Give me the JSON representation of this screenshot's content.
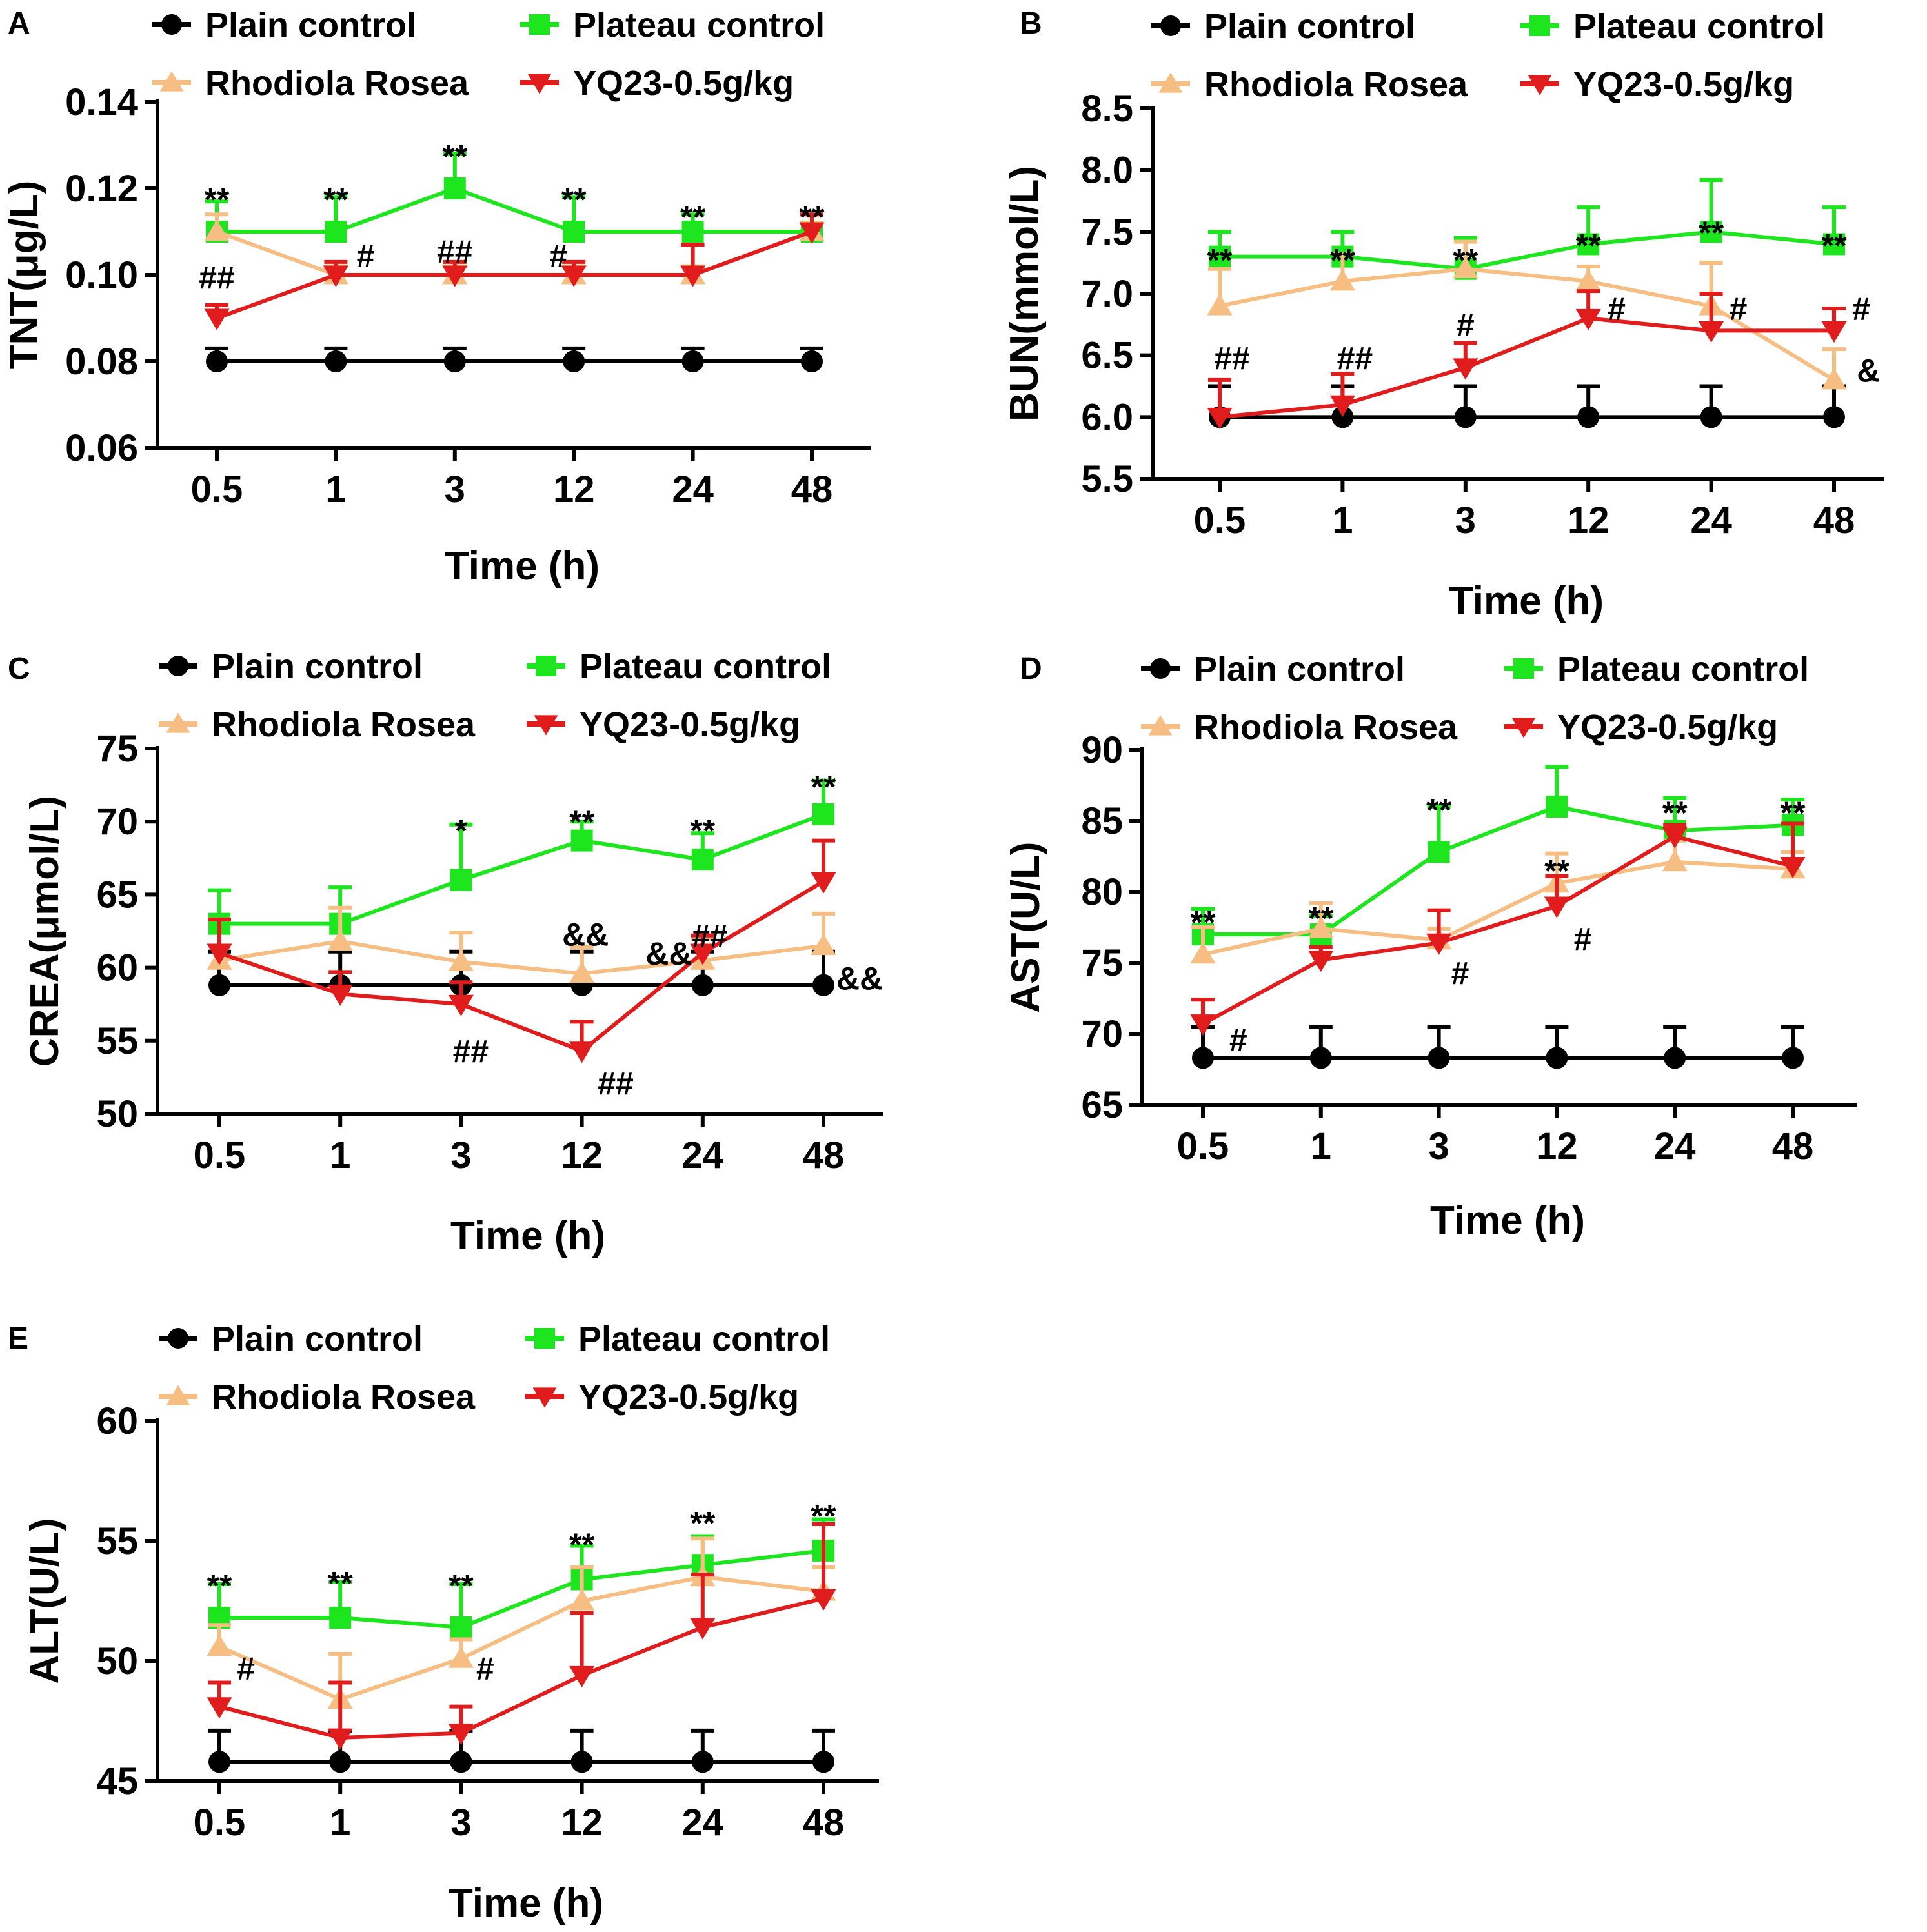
{
  "chart_data": [
    {
      "panel": "A",
      "type": "line",
      "ylabel": "TNT(μg/L)",
      "xlabel": "Time (h)",
      "categories": [
        "0.5",
        "1",
        "3",
        "12",
        "24",
        "48"
      ],
      "ylim": [
        0.06,
        0.14
      ],
      "yticks": [
        "0.06",
        "0.08",
        "0.10",
        "0.12",
        "0.14"
      ],
      "legend": [
        "Plain control",
        "Plateau control",
        "Rhodiola Rosea",
        "YQ23-0.5g/kg"
      ],
      "series": [
        {
          "name": "Plain control",
          "values": [
            0.08,
            0.08,
            0.08,
            0.08,
            0.08,
            0.08
          ],
          "err": [
            0.003,
            0.003,
            0.003,
            0.003,
            0.003,
            0.003
          ]
        },
        {
          "name": "Plateau control",
          "values": [
            0.11,
            0.11,
            0.12,
            0.11,
            0.11,
            0.11
          ],
          "err": [
            0.007,
            0.008,
            0.008,
            0.008,
            0.004,
            0.004
          ]
        },
        {
          "name": "Rhodiola Rosea",
          "values": [
            0.11,
            0.1,
            0.1,
            0.1,
            0.1,
            0.11
          ],
          "err": [
            0.004,
            0.002,
            0.002,
            0.002,
            0.002,
            0.002
          ]
        },
        {
          "name": "YQ23-0.5g/kg",
          "values": [
            0.09,
            0.1,
            0.1,
            0.1,
            0.1,
            0.11
          ],
          "err": [
            0.003,
            0.003,
            0.003,
            0.003,
            0.007,
            0.004
          ]
        }
      ],
      "annotations": [
        {
          "text": "**",
          "x": 0,
          "y": 0.1205
        },
        {
          "text": "**",
          "x": 1,
          "y": 0.1205
        },
        {
          "text": "**",
          "x": 2,
          "y": 0.1305
        },
        {
          "text": "**",
          "x": 3,
          "y": 0.1205
        },
        {
          "text": "**",
          "x": 4,
          "y": 0.1165
        },
        {
          "text": "**",
          "x": 5,
          "y": 0.1165
        },
        {
          "text": "##",
          "x": 0,
          "y": 0.0995
        },
        {
          "text": "#",
          "x": 1.25,
          "y": 0.1045
        },
        {
          "text": "##",
          "x": 2,
          "y": 0.1055
        },
        {
          "text": "#",
          "x": 2.87,
          "y": 0.1045
        }
      ]
    },
    {
      "panel": "B",
      "type": "line",
      "ylabel": "BUN(mmol/L)",
      "xlabel": "Time (h)",
      "categories": [
        "0.5",
        "1",
        "3",
        "12",
        "24",
        "48"
      ],
      "ylim": [
        5.5,
        8.5
      ],
      "yticks": [
        "5.5",
        "6.0",
        "6.5",
        "7.0",
        "7.5",
        "8.0",
        "8.5"
      ],
      "legend": [
        "Plain control",
        "Plateau control",
        "Rhodiola Rosea",
        "YQ23-0.5g/kg"
      ],
      "series": [
        {
          "name": "Plain control",
          "values": [
            6.0,
            6.0,
            6.0,
            6.0,
            6.0,
            6.0
          ],
          "err": [
            0.25,
            0.25,
            0.25,
            0.25,
            0.25,
            0.25
          ]
        },
        {
          "name": "Plateau control",
          "values": [
            7.3,
            7.3,
            7.2,
            7.4,
            7.5,
            7.4
          ],
          "err": [
            0.2,
            0.2,
            0.25,
            0.3,
            0.42,
            0.3
          ]
        },
        {
          "name": "Rhodiola Rosea",
          "values": [
            6.9,
            7.1,
            7.2,
            7.1,
            6.9,
            6.3
          ],
          "err": [
            0.3,
            0.22,
            0.22,
            0.12,
            0.35,
            0.25
          ]
        },
        {
          "name": "YQ23-0.5g/kg",
          "values": [
            6.0,
            6.1,
            6.4,
            6.8,
            6.7,
            6.7
          ],
          "err": [
            0.3,
            0.25,
            0.2,
            0.22,
            0.3,
            0.18
          ]
        }
      ],
      "annotations": [
        {
          "text": "**",
          "x": 0,
          "y": 7.38
        },
        {
          "text": "**",
          "x": 1,
          "y": 7.38
        },
        {
          "text": "**",
          "x": 2,
          "y": 7.38
        },
        {
          "text": "**",
          "x": 3,
          "y": 7.5
        },
        {
          "text": "**",
          "x": 4,
          "y": 7.6
        },
        {
          "text": "**",
          "x": 5,
          "y": 7.5
        },
        {
          "text": "##",
          "x": 0.1,
          "y": 6.48
        },
        {
          "text": "##",
          "x": 1.1,
          "y": 6.48
        },
        {
          "text": "#",
          "x": 2,
          "y": 6.75
        },
        {
          "text": "#",
          "x": 3.23,
          "y": 6.88
        },
        {
          "text": "#",
          "x": 4.22,
          "y": 6.88
        },
        {
          "text": "#",
          "x": 5.22,
          "y": 6.88
        },
        {
          "text": "&",
          "x": 5.28,
          "y": 6.38
        }
      ]
    },
    {
      "panel": "C",
      "type": "line",
      "ylabel": "CREA(μmol/L)",
      "xlabel": "Time (h)",
      "categories": [
        "0.5",
        "1",
        "3",
        "12",
        "24",
        "48"
      ],
      "ylim": [
        50,
        75
      ],
      "yticks": [
        "50",
        "55",
        "60",
        "65",
        "70",
        "75"
      ],
      "legend": [
        "Plain control",
        "Plateau control",
        "Rhodiola Rosea",
        "YQ23-0.5g/kg"
      ],
      "series": [
        {
          "name": "Plain control",
          "values": [
            58.8,
            58.8,
            58.8,
            58.8,
            58.8,
            58.8
          ],
          "err": [
            2.3,
            2.3,
            2.3,
            2.3,
            2.3,
            2.3
          ]
        },
        {
          "name": "Plateau control",
          "values": [
            63.0,
            63.0,
            66.0,
            68.7,
            67.4,
            70.5
          ],
          "err": [
            2.3,
            2.5,
            3.8,
            1.3,
            1.8,
            2.3
          ]
        },
        {
          "name": "Rhodiola Rosea",
          "values": [
            60.5,
            61.8,
            60.4,
            59.6,
            60.5,
            61.5
          ],
          "err": [
            2.8,
            2.3,
            2.0,
            1.8,
            1.5,
            2.2
          ]
        },
        {
          "name": "YQ23-0.5g/kg",
          "values": [
            61.0,
            58.2,
            57.5,
            54.3,
            61.0,
            65.9
          ],
          "err": [
            2.3,
            1.5,
            1.5,
            2.0,
            1.2,
            2.8
          ]
        }
      ],
      "annotations": [
        {
          "text": "*",
          "x": 2,
          "y": 70.3
        },
        {
          "text": "**",
          "x": 3,
          "y": 70.9
        },
        {
          "text": "**",
          "x": 4,
          "y": 70.3
        },
        {
          "text": "**",
          "x": 5,
          "y": 73.3
        },
        {
          "text": "&&",
          "x": 3.03,
          "y": 62.3
        },
        {
          "text": "&&",
          "x": 3.72,
          "y": 61.0
        },
        {
          "text": "##",
          "x": 4.06,
          "y": 62.2
        },
        {
          "text": "&&",
          "x": 5.3,
          "y": 59.3
        },
        {
          "text": "##",
          "x": 2.08,
          "y": 54.3
        },
        {
          "text": "##",
          "x": 3.28,
          "y": 52.1
        }
      ]
    },
    {
      "panel": "D",
      "type": "line",
      "ylabel": "AST(U/L)",
      "xlabel": "Time (h)",
      "categories": [
        "0.5",
        "1",
        "3",
        "12",
        "24",
        "48"
      ],
      "ylim": [
        65,
        90
      ],
      "yticks": [
        "65",
        "70",
        "75",
        "80",
        "85",
        "90"
      ],
      "legend": [
        "Plain control",
        "Plateau control",
        "Rhodiola Rosea",
        "YQ23-0.5g/kg"
      ],
      "series": [
        {
          "name": "Plain control",
          "values": [
            68.3,
            68.3,
            68.3,
            68.3,
            68.3,
            68.3
          ],
          "err": [
            2.2,
            2.2,
            2.2,
            2.2,
            2.2,
            2.2
          ]
        },
        {
          "name": "Plateau control",
          "values": [
            77.0,
            77.0,
            82.8,
            86.0,
            84.3,
            84.7
          ],
          "err": [
            1.8,
            1.3,
            3.2,
            2.8,
            2.3,
            1.8
          ]
        },
        {
          "name": "Rhodiola Rosea",
          "values": [
            75.6,
            77.4,
            76.6,
            80.6,
            82.1,
            81.6
          ],
          "err": [
            1.9,
            1.8,
            0.8,
            2.1,
            1.5,
            1.2
          ]
        },
        {
          "name": "YQ23-0.5g/kg",
          "values": [
            70.7,
            75.2,
            76.4,
            79.0,
            83.9,
            81.8
          ],
          "err": [
            1.7,
            0.9,
            2.3,
            2.1,
            0.8,
            3.0
          ]
        }
      ],
      "annotations": [
        {
          "text": "**",
          "x": 0,
          "y": 78.8
        },
        {
          "text": "**",
          "x": 1,
          "y": 79.1
        },
        {
          "text": "**",
          "x": 2,
          "y": 86.7
        },
        {
          "text": "**",
          "x": 3,
          "y": 82.4
        },
        {
          "text": "**",
          "x": 4,
          "y": 86.5
        },
        {
          "text": "**",
          "x": 5,
          "y": 86.5
        },
        {
          "text": "#",
          "x": 0.3,
          "y": 69.6
        },
        {
          "text": "#",
          "x": 2.18,
          "y": 74.3
        },
        {
          "text": "#",
          "x": 3.22,
          "y": 76.7
        }
      ]
    },
    {
      "panel": "E",
      "type": "line",
      "ylabel": "ALT(U/L)",
      "xlabel": "Time (h)",
      "categories": [
        "0.5",
        "1",
        "3",
        "12",
        "24",
        "48"
      ],
      "ylim": [
        45,
        60
      ],
      "yticks": [
        "45",
        "50",
        "55",
        "60"
      ],
      "legend": [
        "Plain control",
        "Plateau control",
        "Rhodiola Rosea",
        "YQ23-0.5g/kg"
      ],
      "series": [
        {
          "name": "Plain control",
          "values": [
            45.8,
            45.8,
            45.8,
            45.8,
            45.8,
            45.8
          ],
          "err": [
            1.3,
            1.3,
            1.3,
            1.3,
            1.3,
            1.3
          ]
        },
        {
          "name": "Plateau control",
          "values": [
            51.8,
            51.8,
            51.4,
            53.4,
            54.0,
            54.6
          ],
          "err": [
            1.4,
            1.5,
            1.8,
            1.4,
            1.2,
            1.3
          ]
        },
        {
          "name": "Rhodiola Rosea",
          "values": [
            50.6,
            48.4,
            50.1,
            52.5,
            53.5,
            52.9
          ],
          "err": [
            0.9,
            1.9,
            0.8,
            1.4,
            1.6,
            1.0
          ]
        },
        {
          "name": "YQ23-0.5g/kg",
          "values": [
            48.1,
            46.8,
            47.0,
            49.4,
            51.4,
            52.6
          ],
          "err": [
            1.0,
            2.3,
            1.1,
            2.6,
            2.2,
            3.1
          ]
        }
      ],
      "annotations": [
        {
          "text": "**",
          "x": 0,
          "y": 53.7
        },
        {
          "text": "**",
          "x": 1,
          "y": 53.8
        },
        {
          "text": "**",
          "x": 2,
          "y": 53.7
        },
        {
          "text": "**",
          "x": 3,
          "y": 55.4
        },
        {
          "text": "**",
          "x": 4,
          "y": 56.3
        },
        {
          "text": "**",
          "x": 5,
          "y": 56.6
        },
        {
          "text": "#",
          "x": 0.22,
          "y": 49.7
        },
        {
          "text": "#",
          "x": 2.2,
          "y": 49.7
        }
      ]
    }
  ],
  "colors": {
    "Plain control": "#000000",
    "Plateau control": "#1ee61e",
    "Rhodiola Rosea": "#f6be82",
    "YQ23-0.5g/kg": "#e11c1c"
  }
}
